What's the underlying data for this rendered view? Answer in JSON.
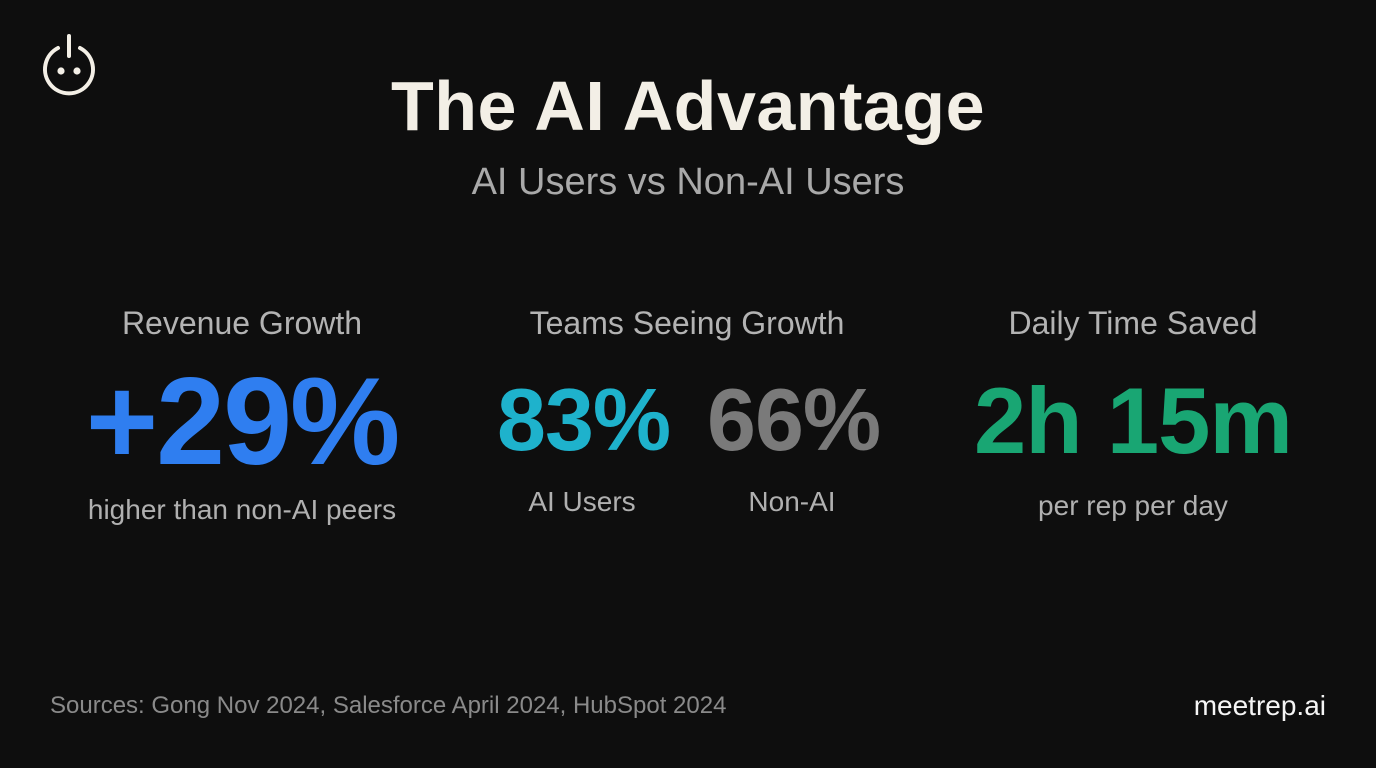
{
  "header": {
    "title": "The AI Advantage",
    "subtitle": "AI Users vs Non-AI Users"
  },
  "logo": {
    "icon": "power-face-icon"
  },
  "stats": {
    "revenue": {
      "label": "Revenue Growth",
      "value": "+29%",
      "caption": "higher than non-AI peers",
      "color": "#2f7ef0"
    },
    "teams": {
      "label": "Teams Seeing Growth",
      "ai": {
        "value": "83%",
        "caption": "AI Users",
        "color": "#1eb2cc"
      },
      "non_ai": {
        "value": "66%",
        "caption": "Non-AI",
        "color": "#7a7a7a"
      }
    },
    "time": {
      "label": "Daily Time Saved",
      "value": "2h 15m",
      "caption": "per rep per day",
      "color": "#19a673"
    }
  },
  "footer": {
    "sources": "Sources: Gong Nov 2024, Salesforce April 2024, HubSpot 2024",
    "brand": "meetrep.ai"
  }
}
